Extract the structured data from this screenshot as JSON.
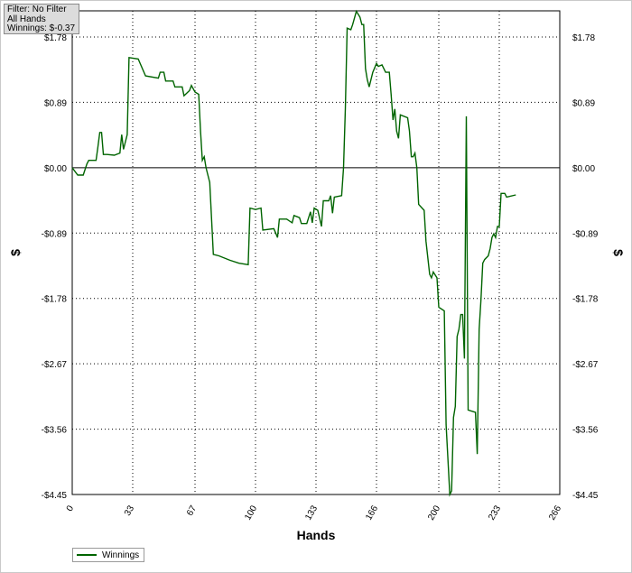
{
  "filter_box": {
    "line1": "Filter: No Filter",
    "line2": "All Hands",
    "line3": "Winnings: $-0.37"
  },
  "chart_data": {
    "type": "line",
    "xlabel": "Hands",
    "ylabel": "$",
    "xlim": [
      0,
      266
    ],
    "ylim": [
      -4.45,
      2.1
    ],
    "x_ticks": [
      0,
      33,
      67,
      100,
      133,
      166,
      200,
      233,
      266
    ],
    "y_ticks": [
      1.78,
      0.89,
      0.0,
      -0.89,
      -1.78,
      -2.67,
      -3.56,
      -4.45
    ],
    "y_tick_labels": [
      "$1.78",
      "$0.89",
      "$0.00",
      "-$0.89",
      "-$1.78",
      "-$2.67",
      "-$3.56",
      "-$4.45"
    ],
    "grid": true,
    "legend_position": "bottom-left",
    "series_color": "#006400",
    "zero_line": true,
    "series": [
      {
        "name": "Winnings",
        "points": [
          [
            0,
            0.0
          ],
          [
            3,
            -0.1
          ],
          [
            6,
            -0.1
          ],
          [
            8,
            0.05
          ],
          [
            9,
            0.1
          ],
          [
            13,
            0.1
          ],
          [
            14,
            0.28
          ],
          [
            15,
            0.48
          ],
          [
            16,
            0.48
          ],
          [
            17,
            0.18
          ],
          [
            19,
            0.18
          ],
          [
            23,
            0.17
          ],
          [
            26,
            0.2
          ],
          [
            27,
            0.45
          ],
          [
            28,
            0.25
          ],
          [
            30,
            0.45
          ],
          [
            31,
            1.5
          ],
          [
            36,
            1.48
          ],
          [
            40,
            1.25
          ],
          [
            47,
            1.22
          ],
          [
            48,
            1.3
          ],
          [
            50,
            1.3
          ],
          [
            51,
            1.18
          ],
          [
            55,
            1.18
          ],
          [
            56,
            1.1
          ],
          [
            60,
            1.1
          ],
          [
            61,
            0.98
          ],
          [
            64,
            1.05
          ],
          [
            65,
            1.12
          ],
          [
            67,
            1.03
          ],
          [
            69,
            1.0
          ],
          [
            70,
            0.5
          ],
          [
            71,
            0.1
          ],
          [
            72,
            0.15
          ],
          [
            73,
            0.0
          ],
          [
            75,
            -0.2
          ],
          [
            77,
            -1.18
          ],
          [
            80,
            -1.2
          ],
          [
            86,
            -1.26
          ],
          [
            91,
            -1.3
          ],
          [
            96,
            -1.32
          ],
          [
            97,
            -0.55
          ],
          [
            100,
            -0.57
          ],
          [
            103,
            -0.55
          ],
          [
            104,
            -0.85
          ],
          [
            110,
            -0.83
          ],
          [
            112,
            -0.95
          ],
          [
            113,
            -0.7
          ],
          [
            117,
            -0.7
          ],
          [
            120,
            -0.75
          ],
          [
            121,
            -0.65
          ],
          [
            124,
            -0.68
          ],
          [
            125,
            -0.76
          ],
          [
            128,
            -0.76
          ],
          [
            130,
            -0.6
          ],
          [
            131,
            -0.75
          ],
          [
            132,
            -0.55
          ],
          [
            134,
            -0.58
          ],
          [
            136,
            -0.8
          ],
          [
            137,
            -0.45
          ],
          [
            140,
            -0.45
          ],
          [
            141,
            -0.38
          ],
          [
            142,
            -0.62
          ],
          [
            143,
            -0.4
          ],
          [
            147,
            -0.38
          ],
          [
            148,
            0.0
          ],
          [
            149,
            0.8
          ],
          [
            150,
            1.9
          ],
          [
            152,
            1.88
          ],
          [
            153,
            1.95
          ],
          [
            155,
            2.13
          ],
          [
            157,
            2.05
          ],
          [
            158,
            1.95
          ],
          [
            159,
            1.95
          ],
          [
            160,
            1.35
          ],
          [
            161,
            1.2
          ],
          [
            162,
            1.1
          ],
          [
            164,
            1.3
          ],
          [
            166,
            1.42
          ],
          [
            167,
            1.38
          ],
          [
            169,
            1.4
          ],
          [
            171,
            1.3
          ],
          [
            173,
            1.3
          ],
          [
            174,
            1.0
          ],
          [
            175,
            0.65
          ],
          [
            176,
            0.8
          ],
          [
            177,
            0.5
          ],
          [
            178,
            0.4
          ],
          [
            179,
            0.72
          ],
          [
            183,
            0.68
          ],
          [
            184,
            0.5
          ],
          [
            185,
            0.15
          ],
          [
            186,
            0.15
          ],
          [
            187,
            0.2
          ],
          [
            188,
            0.0
          ],
          [
            189,
            -0.5
          ],
          [
            192,
            -0.58
          ],
          [
            193,
            -1.0
          ],
          [
            195,
            -1.45
          ],
          [
            196,
            -1.5
          ],
          [
            197,
            -1.42
          ],
          [
            199,
            -1.5
          ],
          [
            200,
            -1.9
          ],
          [
            203,
            -1.95
          ],
          [
            204,
            -3.5
          ],
          [
            206,
            -4.45
          ],
          [
            207,
            -4.4
          ],
          [
            208,
            -3.4
          ],
          [
            209,
            -3.25
          ],
          [
            210,
            -2.3
          ],
          [
            211,
            -2.2
          ],
          [
            212,
            -2.0
          ],
          [
            213,
            -2.0
          ],
          [
            214,
            -2.6
          ],
          [
            215,
            0.7
          ],
          [
            216,
            -3.3
          ],
          [
            220,
            -3.33
          ],
          [
            221,
            -3.9
          ],
          [
            222,
            -2.2
          ],
          [
            223,
            -1.8
          ],
          [
            224,
            -1.3
          ],
          [
            225,
            -1.25
          ],
          [
            227,
            -1.2
          ],
          [
            228,
            -1.1
          ],
          [
            229,
            -0.95
          ],
          [
            230,
            -0.9
          ],
          [
            231,
            -0.95
          ],
          [
            232,
            -0.8
          ],
          [
            233,
            -0.8
          ],
          [
            234,
            -0.35
          ],
          [
            236,
            -0.35
          ],
          [
            237,
            -0.4
          ],
          [
            242,
            -0.37
          ]
        ]
      }
    ]
  },
  "legend": {
    "label": "Winnings"
  }
}
